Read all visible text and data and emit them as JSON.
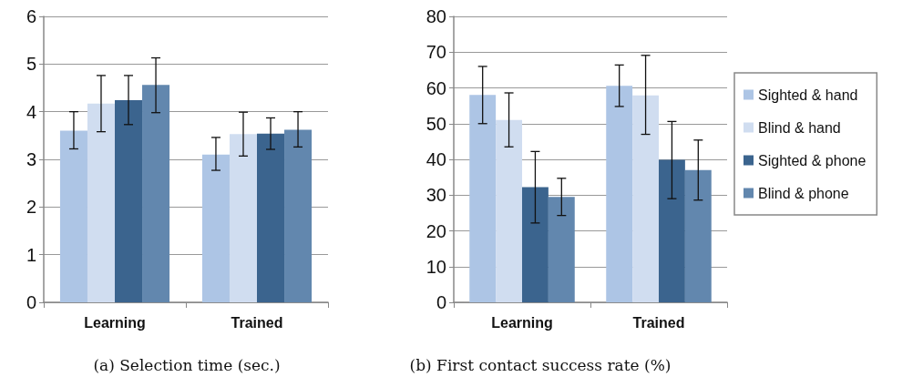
{
  "chart_data": [
    {
      "type": "bar",
      "title": "(a) Selection time (sec.)",
      "categories": [
        "Learning",
        "Trained"
      ],
      "ylim": [
        0,
        6
      ],
      "yticks": [
        0,
        1,
        2,
        3,
        4,
        5,
        6
      ],
      "grid": "y",
      "legend": false,
      "series": [
        {
          "color": "#adc5e5",
          "values": [
            3.6,
            3.1
          ],
          "errors": [
            [
              3.22,
              4.0
            ],
            [
              2.77,
              3.46
            ]
          ]
        },
        {
          "color": "#d0ddf0",
          "values": [
            4.17,
            3.53
          ],
          "errors": [
            [
              3.58,
              4.76
            ],
            [
              3.07,
              3.99
            ]
          ]
        },
        {
          "color": "#3b648e",
          "values": [
            4.24,
            3.54
          ],
          "errors": [
            [
              3.73,
              4.76
            ],
            [
              3.21,
              3.87
            ]
          ]
        },
        {
          "color": "#6287ae",
          "values": [
            4.56,
            3.62
          ],
          "errors": [
            [
              3.98,
              5.13
            ],
            [
              3.26,
              4.0
            ]
          ]
        }
      ]
    },
    {
      "type": "bar",
      "title": "(b) First contact success rate (%)",
      "categories": [
        "Learning",
        "Trained"
      ],
      "ylim": [
        0,
        80
      ],
      "yticks": [
        0,
        10,
        20,
        30,
        40,
        50,
        60,
        70,
        80
      ],
      "grid": "y",
      "legend": "right",
      "series": [
        {
          "name": "Sighted & hand",
          "color": "#adc5e5",
          "values": [
            58,
            60.6
          ],
          "errors": [
            [
              50,
              66
            ],
            [
              54.8,
              66.4
            ]
          ]
        },
        {
          "name": "Blind & hand",
          "color": "#d0ddf0",
          "values": [
            51,
            57.9
          ],
          "errors": [
            [
              43.5,
              58.6
            ],
            [
              47,
              69.1
            ]
          ]
        },
        {
          "name": "Sighted & phone",
          "color": "#3b648e",
          "values": [
            32.2,
            39.9
          ],
          "errors": [
            [
              22.2,
              42.2
            ],
            [
              29,
              50.6
            ]
          ]
        },
        {
          "name": "Blind & phone",
          "color": "#6287ae",
          "values": [
            29.5,
            37
          ],
          "errors": [
            [
              24.3,
              34.7
            ],
            [
              28.6,
              45.4
            ]
          ]
        }
      ]
    }
  ]
}
